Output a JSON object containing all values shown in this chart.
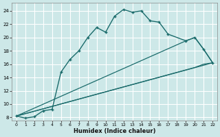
{
  "xlabel": "Humidex (Indice chaleur)",
  "bg_color": "#cde8e8",
  "grid_color": "#ffffff",
  "line_color": "#1a6b6b",
  "xlim": [
    -0.5,
    22.5
  ],
  "ylim": [
    7.5,
    25.2
  ],
  "xticks": [
    0,
    1,
    2,
    3,
    4,
    5,
    6,
    7,
    8,
    9,
    10,
    11,
    12,
    13,
    14,
    15,
    16,
    17,
    18,
    19,
    20,
    21,
    22
  ],
  "yticks": [
    8,
    10,
    12,
    14,
    16,
    18,
    20,
    22,
    24
  ],
  "line1_x": [
    0,
    1,
    2,
    3,
    4,
    5,
    6,
    7,
    8,
    9,
    10,
    11,
    12,
    13,
    14,
    15,
    16,
    17,
    19,
    20,
    21,
    22
  ],
  "line1_y": [
    8.2,
    7.9,
    8.1,
    9.0,
    9.2,
    14.8,
    16.7,
    18.0,
    20.0,
    21.5,
    20.8,
    23.2,
    24.2,
    23.8,
    24.0,
    22.5,
    22.3,
    20.5,
    19.5,
    20.0,
    18.2,
    16.2
  ],
  "line2_x": [
    0,
    19,
    20,
    21,
    22
  ],
  "line2_y": [
    8.2,
    19.5,
    20.0,
    18.2,
    16.2
  ],
  "line3_x": [
    0,
    20,
    21,
    22
  ],
  "line3_y": [
    8.2,
    15.5,
    16.0,
    16.2
  ],
  "line4_x": [
    0,
    22
  ],
  "line4_y": [
    8.2,
    16.2
  ]
}
